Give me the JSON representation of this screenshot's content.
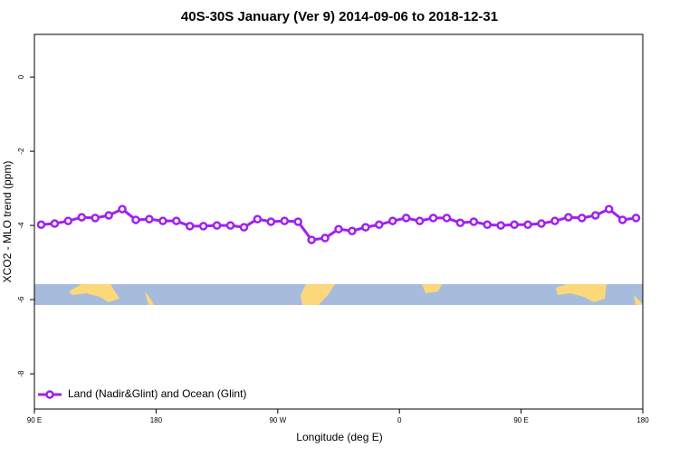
{
  "chart_data": {
    "type": "line",
    "title": "40S-30S January (Ver 9)   2014-09-06 to 2018-12-31",
    "x_label": "Longitude (deg E)",
    "y_label": "XCO2 - MLO trend (ppm)",
    "x": [
      95,
      105,
      115,
      125,
      135,
      145,
      155,
      165,
      175,
      185,
      195,
      205,
      215,
      225,
      235,
      245,
      255,
      265,
      275,
      285,
      295,
      305,
      315,
      325,
      335,
      345,
      355,
      365,
      375,
      385,
      395,
      405,
      415,
      425,
      435,
      445,
      455,
      465,
      475,
      485,
      495,
      505,
      515,
      525,
      535
    ],
    "series": [
      {
        "name": "Land (Nadir&Glint) and Ocean (Glint)",
        "color": "#a020f0",
        "values": [
          -3.98,
          -3.95,
          -3.88,
          -3.78,
          -3.8,
          -3.73,
          -3.56,
          -3.85,
          -3.83,
          -3.88,
          -3.88,
          -4.02,
          -4.02,
          -4,
          -4,
          -4.05,
          -3.83,
          -3.9,
          -3.88,
          -3.9,
          -4.39,
          -4.34,
          -4.1,
          -4.15,
          -4.05,
          -3.98,
          -3.88,
          -3.8,
          -3.88,
          -3.8,
          -3.8,
          -3.93,
          -3.9,
          -3.98,
          -4,
          -3.98,
          -3.98,
          -3.95,
          -3.88,
          -3.78,
          -3.8,
          -3.73,
          -3.56,
          -3.85,
          -3.8
        ]
      }
    ],
    "xlim": [
      90,
      540
    ],
    "xticks": [
      {
        "value": 90,
        "label": "90 E"
      },
      {
        "value": 180,
        "label": "180"
      },
      {
        "value": 270,
        "label": "90 W"
      },
      {
        "value": 360,
        "label": "0"
      },
      {
        "value": 450,
        "label": "90 E"
      },
      {
        "value": 540,
        "label": "180"
      }
    ],
    "ylim": [
      -8.95,
      1.15
    ],
    "yticks": [
      0,
      -2,
      -4,
      -6,
      -8
    ],
    "legend": "bottom-left"
  }
}
